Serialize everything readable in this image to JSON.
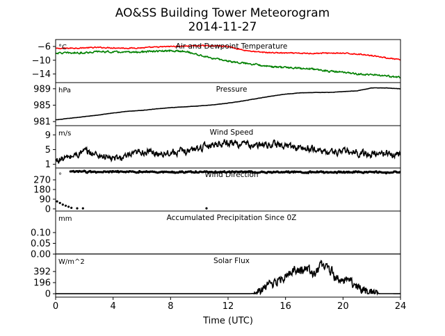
{
  "chart_data": {
    "title": "AO&SS Building Tower Meteorogram",
    "subtitle": "2014-11-27",
    "xlabel": "Time (UTC)",
    "xlim": [
      0,
      24
    ],
    "xticks": [
      "0",
      "4",
      "8",
      "12",
      "16",
      "20",
      "24"
    ],
    "panels": [
      {
        "type": "line",
        "id": "temp",
        "title": "Air and Dewpoint Temperature",
        "unit": "°C",
        "ylim": [
          -16.5,
          -4.0
        ],
        "yticks": [
          -6,
          -10,
          -14
        ],
        "ytick_labels": [
          "−6",
          "−10",
          "−14"
        ],
        "series": [
          {
            "color": "#ff0000",
            "noise": 0.25,
            "x": [
              0,
              1,
              2,
              3,
              4,
              5,
              6,
              7,
              8,
              9,
              10,
              11,
              12,
              13,
              14,
              15,
              16,
              17,
              18,
              19,
              20,
              21,
              22,
              23,
              24
            ],
            "y": [
              -6.6,
              -6.5,
              -6.4,
              -6.3,
              -6.4,
              -6.5,
              -6.4,
              -6.2,
              -6.0,
              -5.9,
              -5.8,
              -5.8,
              -6.0,
              -7.0,
              -7.6,
              -7.8,
              -7.9,
              -8.0,
              -8.0,
              -7.9,
              -8.0,
              -8.2,
              -8.6,
              -9.3,
              -9.9
            ]
          },
          {
            "color": "#008000",
            "noise": 0.4,
            "x": [
              0,
              1,
              2,
              3,
              4,
              5,
              6,
              7,
              8,
              9,
              10,
              11,
              12,
              13,
              14,
              15,
              16,
              17,
              18,
              19,
              20,
              21,
              22,
              23,
              24
            ],
            "y": [
              -7.9,
              -7.9,
              -7.8,
              -7.5,
              -7.6,
              -7.7,
              -7.6,
              -7.4,
              -7.3,
              -7.4,
              -8.5,
              -9.5,
              -10.2,
              -10.8,
              -11.2,
              -11.9,
              -12.1,
              -12.3,
              -12.6,
              -13.2,
              -13.5,
              -14.0,
              -14.2,
              -14.6,
              -15.0
            ]
          }
        ]
      },
      {
        "type": "line",
        "id": "pressure",
        "title": "Pressure",
        "unit": "hPa",
        "ylim": [
          980.0,
          990.5
        ],
        "yticks": [
          981,
          985,
          989
        ],
        "ytick_labels": [
          "981",
          "985",
          "989"
        ],
        "series": [
          {
            "color": "#000000",
            "noise": 0.05,
            "x": [
              0,
              1,
              2,
              3,
              4,
              5,
              6,
              7,
              8,
              9,
              10,
              11,
              12,
              13,
              14,
              15,
              16,
              17,
              18,
              19,
              20,
              21,
              22,
              23,
              24
            ],
            "y": [
              981.4,
              981.8,
              982.2,
              982.6,
              983.1,
              983.5,
              983.7,
              984.1,
              984.4,
              984.6,
              984.8,
              985.1,
              985.5,
              986.0,
              986.6,
              987.2,
              987.7,
              988.0,
              988.1,
              988.1,
              988.3,
              988.5,
              989.2,
              989.2,
              989.0
            ]
          }
        ]
      },
      {
        "type": "line",
        "id": "wind",
        "title": "Wind Speed",
        "unit": "m/s",
        "ylim": [
          0.0,
          11.5
        ],
        "yticks": [
          1,
          5,
          9
        ],
        "ytick_labels": [
          "1",
          "5",
          "9"
        ],
        "series": [
          {
            "color": "#000000",
            "noise": 1.6,
            "x": [
              0,
              1,
              2,
              3,
              4,
              5,
              6,
              7,
              8,
              9,
              10,
              11,
              12,
              13,
              14,
              15,
              16,
              17,
              18,
              19,
              20,
              21,
              22,
              23,
              24
            ],
            "y": [
              2.0,
              3.0,
              4.5,
              3.5,
              2.5,
              3.0,
              4.5,
              4.0,
              4.2,
              4.5,
              5.5,
              6.5,
              7.0,
              6.5,
              6.0,
              6.5,
              6.0,
              5.5,
              5.0,
              4.3,
              4.5,
              4.0,
              3.8,
              4.0,
              3.5
            ]
          }
        ]
      },
      {
        "type": "scatter",
        "id": "direction",
        "title": "Wind Direction",
        "unit": "°",
        "ylim": [
          -20,
          380
        ],
        "yticks": [
          0,
          90,
          180,
          270
        ],
        "ytick_labels": [
          "0",
          "90",
          "180",
          "270"
        ],
        "series": [
          {
            "color": "#000000",
            "noise": 12,
            "x": [
              1,
              24
            ],
            "y": [
              345,
              340
            ],
            "extra_points": [
              [
                0.1,
                70
              ],
              [
                0.3,
                55
              ],
              [
                0.5,
                40
              ],
              [
                0.7,
                30
              ],
              [
                0.9,
                20
              ],
              [
                1.1,
                10
              ],
              [
                1.5,
                5
              ],
              [
                1.9,
                5
              ],
              [
                10.5,
                5
              ]
            ]
          }
        ]
      },
      {
        "type": "line",
        "id": "precip",
        "title": "Accumulated Precipitation Since 0Z",
        "unit": "mm",
        "ylim": [
          0.0,
          0.2
        ],
        "yticks": [
          0.0,
          0.05,
          0.1
        ],
        "ytick_labels": [
          "0.00",
          "0.05",
          "0.10"
        ],
        "series": [
          {
            "color": "#000000",
            "noise": 0,
            "x": [
              0,
              24
            ],
            "y": [
              0.0,
              0.0
            ]
          }
        ]
      },
      {
        "type": "line",
        "id": "solar",
        "title": "Solar Flux",
        "unit": "W/m^2",
        "ylim": [
          -60,
          700
        ],
        "yticks": [
          0,
          196,
          392
        ],
        "ytick_labels": [
          "0",
          "196",
          "392"
        ],
        "series": [
          {
            "color": "#000000",
            "noise": 150,
            "x": [
              0,
              13.5,
              14,
              14.5,
              15,
              15.5,
              16,
              16.5,
              17,
              17.5,
              18,
              18.5,
              19,
              19.5,
              20,
              20.5,
              21,
              21.5,
              22,
              22.5,
              24
            ],
            "y": [
              0,
              0,
              10,
              80,
              170,
              250,
              330,
              420,
              380,
              430,
              360,
              470,
              440,
              300,
              220,
              200,
              150,
              90,
              30,
              2,
              0
            ]
          }
        ]
      }
    ]
  }
}
